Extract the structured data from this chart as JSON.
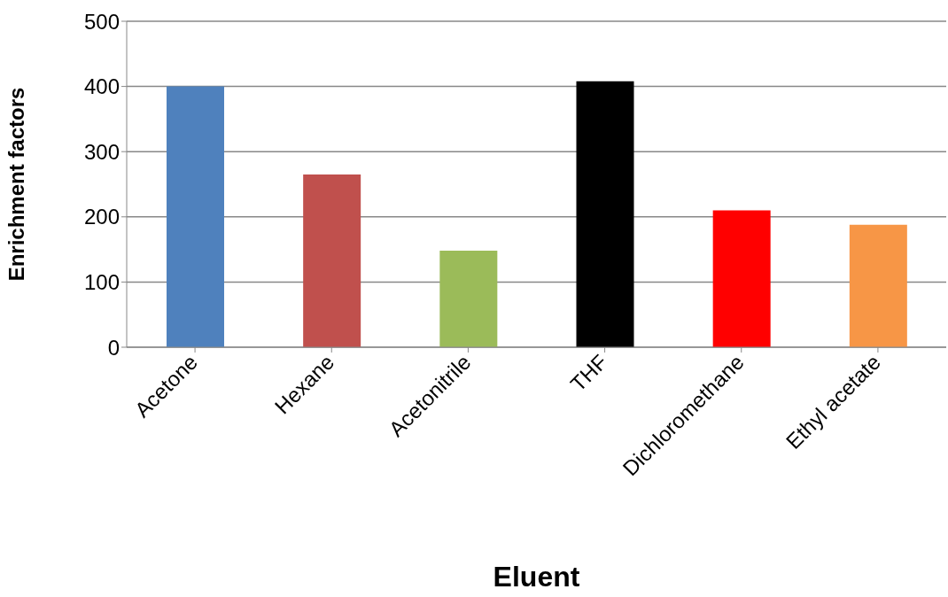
{
  "chart_data": {
    "type": "bar",
    "xlabel": "Eluent",
    "ylabel": "Enrichment factors",
    "categories": [
      "Acetone",
      "Hexane",
      "Acetonitrile",
      "THF",
      "Dichloromethane",
      "Ethyl acetate"
    ],
    "values": [
      400,
      265,
      148,
      408,
      210,
      188
    ],
    "colors": [
      "#4f81bd",
      "#c0504d",
      "#9bbb59",
      "#000000",
      "#ff0000",
      "#f79646"
    ],
    "ylim": [
      0,
      500
    ],
    "yticks": [
      0,
      100,
      200,
      300,
      400,
      500
    ],
    "grid": "y"
  }
}
